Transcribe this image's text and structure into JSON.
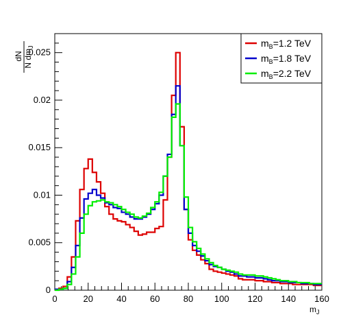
{
  "chart_data": {
    "type": "line",
    "step": true,
    "xlabel": "m",
    "xlabel_sub": "J",
    "ylabel": {
      "numerator": "dN",
      "denominator_prefix": "N dm",
      "denominator_sub": "J"
    },
    "xlim": [
      0,
      160
    ],
    "ylim": [
      0,
      0.027
    ],
    "x_ticks": [
      0,
      20,
      40,
      60,
      80,
      100,
      120,
      140,
      160
    ],
    "x_tick_labels": [
      "0",
      "20",
      "40",
      "60",
      "80",
      "100",
      "120",
      "140",
      "160"
    ],
    "y_ticks": [
      0,
      0.005,
      0.01,
      0.015,
      0.02,
      0.025
    ],
    "y_tick_labels": [
      "0",
      "0.005",
      "0.01",
      "0.015",
      "0.02",
      "0.025"
    ],
    "bin_edges": [
      0,
      2.5,
      5,
      7.5,
      10,
      12.5,
      15,
      17.5,
      20,
      22.5,
      25,
      27.5,
      30,
      32.5,
      35,
      37.5,
      40,
      42.5,
      45,
      47.5,
      50,
      52.5,
      55,
      57.5,
      60,
      62.5,
      65,
      67.5,
      70,
      72.5,
      75,
      77.5,
      80,
      82.5,
      85,
      87.5,
      90,
      92.5,
      95,
      97.5,
      100,
      102.5,
      105,
      107.5,
      110,
      112.5,
      115,
      117.5,
      120,
      122.5,
      125,
      127.5,
      130,
      132.5,
      135,
      137.5,
      140,
      142.5,
      145,
      147.5,
      150,
      152.5,
      155,
      157.5,
      160
    ],
    "legend_position": "top-right",
    "series": [
      {
        "legend": "m",
        "legend_sub": "B",
        "legend_suffix": "=1.2 TeV",
        "color": "#dd0000",
        "values": [
          0.0001,
          0.0002,
          0.0004,
          0.0014,
          0.0035,
          0.0073,
          0.0106,
          0.0128,
          0.0138,
          0.0124,
          0.0114,
          0.0102,
          0.0088,
          0.008,
          0.0075,
          0.0073,
          0.0072,
          0.0069,
          0.0066,
          0.0062,
          0.0058,
          0.0059,
          0.0061,
          0.0061,
          0.0065,
          0.0067,
          0.0095,
          0.014,
          0.0205,
          0.025,
          0.0172,
          0.0085,
          0.0053,
          0.0042,
          0.0037,
          0.0032,
          0.0028,
          0.0022,
          0.002,
          0.0019,
          0.0018,
          0.0017,
          0.0016,
          0.0015,
          0.0012,
          0.0011,
          0.0011,
          0.0011,
          0.001,
          0.001,
          0.0009,
          0.0009,
          0.0008,
          0.0008,
          0.0007,
          0.0007,
          0.0007,
          0.0006,
          0.0006,
          0.0006,
          0.0006,
          0.0006,
          0.0005,
          0.0005
        ]
      },
      {
        "legend": "m",
        "legend_sub": "B",
        "legend_suffix": "=1.8 TeV",
        "color": "#0000cc",
        "values": [
          0.0001,
          0.0001,
          0.0002,
          0.0009,
          0.0024,
          0.0047,
          0.0076,
          0.0096,
          0.0102,
          0.0106,
          0.01,
          0.0097,
          0.0092,
          0.009,
          0.0087,
          0.0086,
          0.0082,
          0.008,
          0.0077,
          0.0075,
          0.0075,
          0.0077,
          0.008,
          0.0085,
          0.0091,
          0.01,
          0.012,
          0.0143,
          0.0185,
          0.0215,
          0.0152,
          0.0085,
          0.006,
          0.0047,
          0.0041,
          0.0036,
          0.0031,
          0.0027,
          0.0025,
          0.0024,
          0.0022,
          0.002,
          0.0019,
          0.0017,
          0.0015,
          0.0015,
          0.0014,
          0.0014,
          0.0013,
          0.0013,
          0.0012,
          0.0011,
          0.001,
          0.001,
          0.0009,
          0.0009,
          0.0008,
          0.0008,
          0.0008,
          0.0007,
          0.0007,
          0.0007,
          0.0006,
          0.0006
        ]
      },
      {
        "legend": "m",
        "legend_sub": "B",
        "legend_suffix": "=2.2 TeV",
        "color": "#00ee00",
        "values": [
          0.0,
          0.0001,
          0.0002,
          0.0006,
          0.0017,
          0.0035,
          0.006,
          0.008,
          0.0089,
          0.0093,
          0.0094,
          0.0095,
          0.0093,
          0.0092,
          0.009,
          0.0088,
          0.0085,
          0.0082,
          0.008,
          0.0077,
          0.0076,
          0.0078,
          0.0081,
          0.0087,
          0.0093,
          0.0103,
          0.012,
          0.014,
          0.0182,
          0.0196,
          0.0152,
          0.0098,
          0.0066,
          0.0051,
          0.0044,
          0.0038,
          0.0033,
          0.0029,
          0.0026,
          0.0024,
          0.0022,
          0.0021,
          0.002,
          0.0019,
          0.0017,
          0.0016,
          0.0016,
          0.0016,
          0.0015,
          0.0015,
          0.0014,
          0.0013,
          0.0012,
          0.0011,
          0.001,
          0.001,
          0.0009,
          0.0009,
          0.0008,
          0.0008,
          0.0008,
          0.0007,
          0.0007,
          0.0007
        ]
      }
    ]
  }
}
